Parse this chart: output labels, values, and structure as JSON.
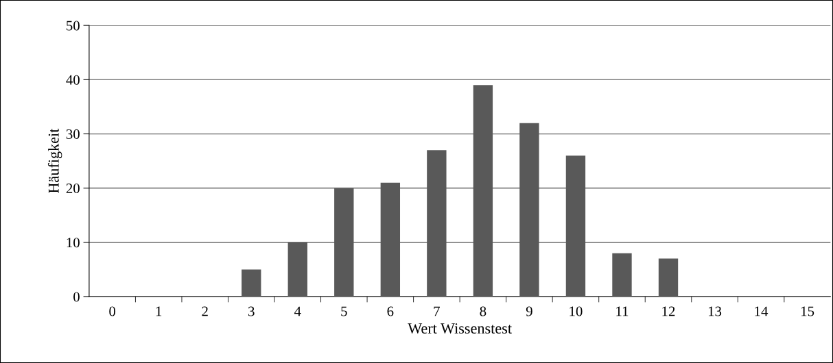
{
  "chart_data": {
    "type": "bar",
    "xlabel": "Wert Wissenstest",
    "ylabel": "Häufigkeit",
    "categories": [
      "0",
      "1",
      "2",
      "3",
      "4",
      "5",
      "6",
      "7",
      "8",
      "9",
      "10",
      "11",
      "12",
      "13",
      "14",
      "15"
    ],
    "values": [
      0,
      0,
      0,
      5,
      10,
      20,
      21,
      27,
      39,
      32,
      26,
      8,
      7,
      0,
      0,
      0
    ],
    "color": "#595959",
    "ylim": [
      0,
      50
    ],
    "yticks": [
      0,
      10,
      20,
      30,
      40,
      50
    ],
    "grid": "y",
    "legend": false
  }
}
